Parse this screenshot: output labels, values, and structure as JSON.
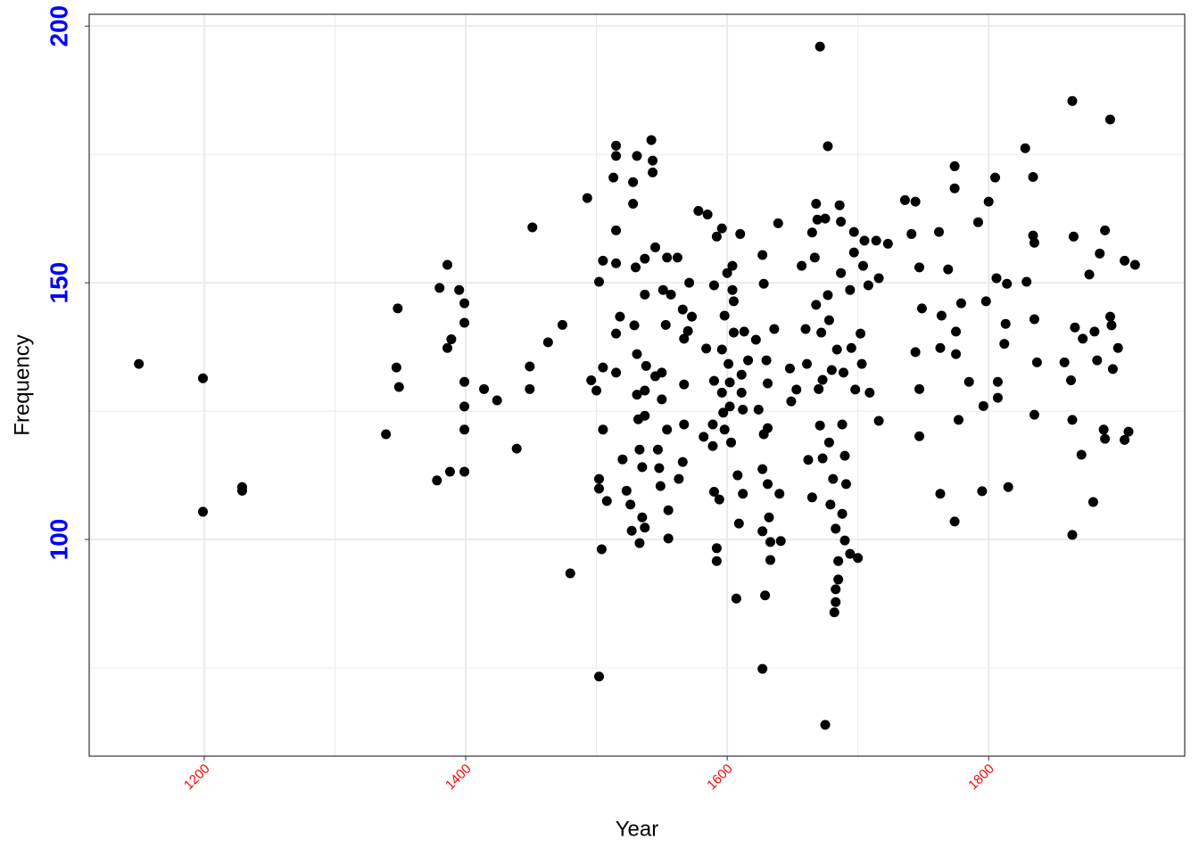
{
  "chart_data": {
    "type": "scatter",
    "xlabel": "Year",
    "ylabel": "Frequency",
    "xlim": [
      1112,
      1950
    ],
    "ylim": [
      57.8,
      202.3
    ],
    "xticks": [
      1200,
      1400,
      1600,
      1800
    ],
    "yticks": [
      100,
      150,
      200
    ],
    "x_minor_grid": [
      1300,
      1500,
      1700
    ],
    "y_minor_grid": [
      75,
      125,
      175
    ],
    "grid": true,
    "color": "#000000",
    "xtick_color": "#ff0000",
    "ytick_color": "#0000ff",
    "x": [
      1150,
      1199,
      1199,
      1229,
      1229,
      1339,
      1348,
      1347,
      1349,
      1378,
      1380,
      1386,
      1386,
      1388,
      1389,
      1395,
      1399,
      1399,
      1399,
      1399,
      1399,
      1399,
      1414,
      1424,
      1439,
      1449,
      1449,
      1451,
      1463,
      1474,
      1480,
      1493,
      1496,
      1500,
      1502,
      1502,
      1502,
      1502,
      1504,
      1505,
      1505,
      1505,
      1508,
      1513,
      1515,
      1515,
      1515,
      1515,
      1515,
      1518,
      1515,
      1520,
      1523,
      1526,
      1527,
      1528,
      1528,
      1531,
      1530,
      1529,
      1531,
      1531,
      1532,
      1533,
      1533,
      1535,
      1535,
      1537,
      1537,
      1538,
      1537,
      1537,
      1537,
      1542,
      1543,
      1543,
      1545,
      1545,
      1547,
      1548,
      1549,
      1551,
      1550,
      1550,
      1553,
      1554,
      1554,
      1555,
      1555,
      1557,
      1562,
      1563,
      1566,
      1566,
      1567,
      1567,
      1567,
      1570,
      1571,
      1573,
      1578,
      1582,
      1584,
      1585,
      1589,
      1589,
      1590,
      1590,
      1590,
      1592,
      1592,
      1592,
      1594,
      1596,
      1596,
      1596,
      1597,
      1598,
      1598,
      1600,
      1601,
      1602,
      1602,
      1603,
      1604,
      1604,
      1605,
      1605,
      1607,
      1608,
      1609,
      1610,
      1611,
      1611,
      1612,
      1613,
      1612,
      1616,
      1622,
      1624,
      1627,
      1627,
      1628,
      1628,
      1627,
      1627,
      1629,
      1630,
      1631,
      1631,
      1631,
      1632,
      1633,
      1633,
      1636,
      1639,
      1640,
      1641,
      1648,
      1649,
      1653,
      1657,
      1660,
      1661,
      1662,
      1665,
      1665,
      1667,
      1668,
      1668,
      1669,
      1670,
      1671,
      1671,
      1672,
      1673,
      1673,
      1675,
      1675,
      1677,
      1677,
      1678,
      1678,
      1679,
      1680,
      1681,
      1682,
      1683,
      1683,
      1683,
      1684,
      1685,
      1685,
      1686,
      1687,
      1687,
      1688,
      1688,
      1689,
      1690,
      1690,
      1691,
      1694,
      1694,
      1695,
      1697,
      1697,
      1698,
      1700,
      1702,
      1703,
      1704,
      1705,
      1708,
      1709,
      1714,
      1716,
      1716,
      1723,
      1736,
      1744,
      1741,
      1747,
      1744,
      1747,
      1747,
      1749,
      1762,
      1763,
      1764,
      1763,
      1769,
      1774,
      1774,
      1775,
      1775,
      1777,
      1774,
      1779,
      1785,
      1792,
      1795,
      1796,
      1798,
      1800,
      1805,
      1806,
      1807,
      1807,
      1812,
      1813,
      1814,
      1815,
      1828,
      1829,
      1834,
      1834,
      1835,
      1835,
      1835,
      1837,
      1858,
      1864,
      1863,
      1864,
      1864,
      1865,
      1866,
      1871,
      1872,
      1877,
      1880,
      1881,
      1883,
      1885,
      1888,
      1889,
      1889,
      1893,
      1893,
      1894,
      1895,
      1899,
      1904,
      1904,
      1907,
      1912
    ],
    "values": [
      134.2,
      131.4,
      105.4,
      110.2,
      109.5,
      120.5,
      145,
      133.5,
      129.7,
      111.5,
      149,
      153.5,
      137.3,
      113.2,
      139,
      148.6,
      146,
      142.2,
      130.7,
      125.9,
      121.4,
      113.2,
      129.3,
      127.1,
      117.7,
      133.7,
      129.3,
      160.8,
      138.4,
      141.8,
      93.4,
      166.5,
      131,
      129,
      150.2,
      73.3,
      111.8,
      109.9,
      98.1,
      154.3,
      133.5,
      121.4,
      107.5,
      170.5,
      176.7,
      174.7,
      160.2,
      153.8,
      140.1,
      143.4,
      132.5,
      115.6,
      109.5,
      106.8,
      101.7,
      165.4,
      169.6,
      174.7,
      153,
      141.7,
      136.1,
      128.2,
      123.4,
      117.5,
      99.3,
      114.1,
      104.3,
      154.7,
      147.7,
      133.8,
      129,
      124.1,
      102.3,
      177.8,
      173.8,
      171.5,
      156.9,
      131.8,
      117.5,
      113.9,
      110.4,
      148.6,
      132.5,
      127.3,
      141.8,
      154.9,
      121.4,
      105.7,
      100.2,
      147.7,
      154.9,
      111.8,
      144.8,
      115.1,
      139.1,
      130.2,
      122.4,
      140.6,
      150,
      143.4,
      164,
      120,
      137.2,
      163.3,
      122.4,
      118.2,
      149.5,
      130.9,
      109.3,
      159,
      98.3,
      95.8,
      107.8,
      160.6,
      137,
      128.6,
      124.7,
      121.4,
      143.6,
      151.9,
      134.2,
      130.6,
      125.9,
      118.9,
      153.3,
      148.6,
      146.4,
      140.3,
      88.5,
      112.5,
      103.1,
      159.5,
      132.1,
      128.6,
      125.3,
      140.5,
      108.9,
      134.9,
      138.9,
      125.3,
      74.8,
      155.4,
      149.8,
      120.5,
      113.7,
      101.6,
      89.1,
      134.9,
      130.4,
      121.7,
      110.8,
      104.3,
      99.5,
      96,
      141,
      161.6,
      108.9,
      99.7,
      133.3,
      126.9,
      129.2,
      153.3,
      141,
      134.2,
      115.5,
      108.2,
      159.8,
      154.9,
      145.7,
      165.4,
      162.3,
      129.3,
      122.2,
      196,
      140.3,
      131.1,
      115.8,
      63.9,
      162.5,
      176.6,
      147.6,
      142.7,
      118.9,
      106.8,
      133,
      111.8,
      85.8,
      87.8,
      90.3,
      102.1,
      137,
      95.8,
      92.2,
      165.1,
      161.9,
      151.9,
      122.4,
      105,
      132.5,
      99.8,
      116.3,
      110.8,
      148.6,
      97.2,
      137.3,
      159.9,
      155.9,
      129.2,
      96.4,
      140.1,
      134.2,
      153.3,
      158.2,
      149.5,
      128.6,
      158.2,
      150.9,
      123.1,
      157.6,
      166.1,
      165.8,
      159.5,
      153,
      136.5,
      129.3,
      120.1,
      145,
      159.9,
      137.3,
      143.6,
      108.9,
      152.6,
      172.7,
      168.4,
      140.5,
      136.1,
      123.3,
      103.5,
      146,
      130.7,
      161.8,
      109.4,
      126,
      146.4,
      165.8,
      170.5,
      150.9,
      127.6,
      130.7,
      138.1,
      142,
      149.8,
      110.2,
      176.2,
      150.2,
      170.6,
      159.2,
      157.8,
      142.9,
      124.3,
      134.5,
      134.5,
      185.4,
      131,
      123.3,
      100.9,
      159,
      141.3,
      116.5,
      139.1,
      151.6,
      107.3,
      140.5,
      134.9,
      155.7,
      121.4,
      160.2,
      119.6,
      181.8,
      143.4,
      141.7,
      133.2,
      137.3,
      154.3,
      119.4,
      121,
      153.5
    ]
  }
}
